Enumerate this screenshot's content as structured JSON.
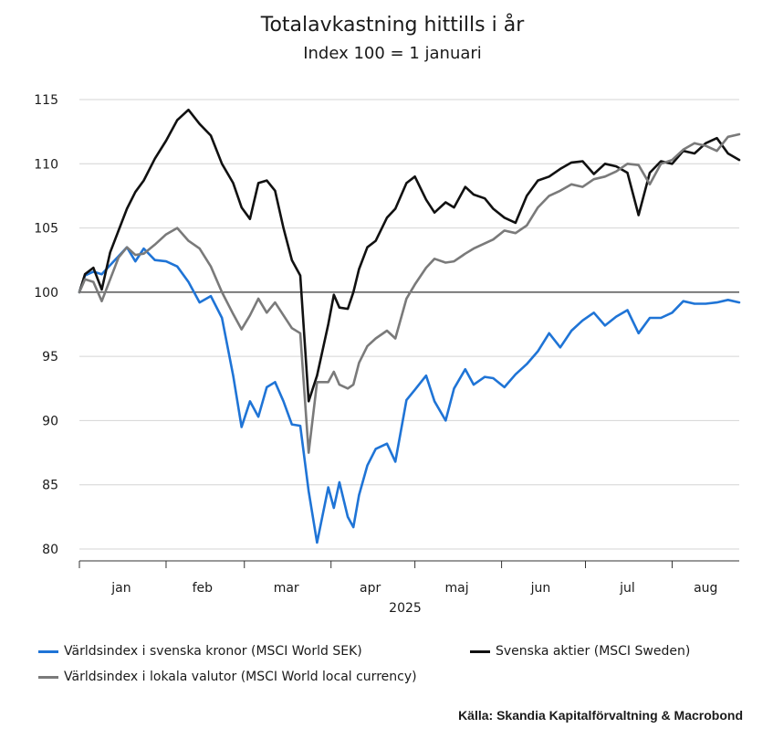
{
  "chart_data": {
    "type": "line",
    "title": "Totalavkastning hittills i år",
    "subtitle": "Index 100 = 1 januari",
    "xlabel": "2025",
    "ylabel": "",
    "ylim": [
      80,
      115
    ],
    "yticks": [
      80,
      85,
      90,
      95,
      100,
      105,
      110,
      115
    ],
    "xlim": [
      "2025-01-01",
      "2025-08-25"
    ],
    "x_tick_labels": [
      {
        "label": "jan",
        "at": "2025-01-16"
      },
      {
        "label": "feb",
        "at": "2025-02-14"
      },
      {
        "label": "mar",
        "at": "2025-03-16"
      },
      {
        "label": "apr",
        "at": "2025-04-15"
      },
      {
        "label": "maj",
        "at": "2025-05-16"
      },
      {
        "label": "jun",
        "at": "2025-06-15"
      },
      {
        "label": "jul",
        "at": "2025-07-16"
      },
      {
        "label": "aug",
        "at": "2025-08-13"
      }
    ],
    "month_boundaries": [
      "2025-01-01",
      "2025-02-01",
      "2025-03-01",
      "2025-04-01",
      "2025-05-01",
      "2025-06-01",
      "2025-07-01",
      "2025-08-01"
    ],
    "reference_line": 100,
    "grid": true,
    "legend_position": "bottom",
    "series": [
      {
        "name": "Världsindex i svenska kronor (MSCI World SEK)",
        "color": "#1f74d6",
        "x": [
          "2025-01-01",
          "2025-01-03",
          "2025-01-06",
          "2025-01-09",
          "2025-01-12",
          "2025-01-15",
          "2025-01-18",
          "2025-01-21",
          "2025-01-24",
          "2025-01-28",
          "2025-02-01",
          "2025-02-05",
          "2025-02-09",
          "2025-02-13",
          "2025-02-17",
          "2025-02-21",
          "2025-02-25",
          "2025-02-28",
          "2025-03-03",
          "2025-03-06",
          "2025-03-09",
          "2025-03-12",
          "2025-03-15",
          "2025-03-18",
          "2025-03-21",
          "2025-03-24",
          "2025-03-27",
          "2025-03-31",
          "2025-04-02",
          "2025-04-04",
          "2025-04-07",
          "2025-04-09",
          "2025-04-11",
          "2025-04-14",
          "2025-04-17",
          "2025-04-21",
          "2025-04-24",
          "2025-04-28",
          "2025-05-01",
          "2025-05-05",
          "2025-05-08",
          "2025-05-12",
          "2025-05-15",
          "2025-05-19",
          "2025-05-22",
          "2025-05-26",
          "2025-05-29",
          "2025-06-02",
          "2025-06-06",
          "2025-06-10",
          "2025-06-14",
          "2025-06-18",
          "2025-06-22",
          "2025-06-26",
          "2025-06-30",
          "2025-07-04",
          "2025-07-08",
          "2025-07-12",
          "2025-07-16",
          "2025-07-20",
          "2025-07-24",
          "2025-07-28",
          "2025-08-01",
          "2025-08-05",
          "2025-08-09",
          "2025-08-13",
          "2025-08-17",
          "2025-08-21",
          "2025-08-25"
        ],
        "y": [
          100.0,
          101.3,
          101.6,
          101.4,
          102.1,
          102.8,
          103.5,
          102.4,
          103.4,
          102.5,
          102.4,
          102.0,
          100.8,
          99.2,
          99.7,
          98.0,
          93.5,
          89.5,
          91.5,
          90.3,
          92.6,
          93.0,
          91.5,
          89.7,
          89.6,
          84.5,
          80.5,
          84.8,
          83.2,
          85.2,
          82.5,
          81.7,
          84.2,
          86.5,
          87.8,
          88.2,
          86.8,
          91.6,
          92.4,
          93.5,
          91.5,
          90.0,
          92.5,
          94.0,
          92.8,
          93.4,
          93.3,
          92.6,
          93.6,
          94.4,
          95.4,
          96.8,
          95.7,
          97.0,
          97.8,
          98.4,
          97.4,
          98.1,
          98.6,
          96.8,
          98.0,
          98.0,
          98.4,
          99.3,
          99.1,
          99.1,
          99.2,
          99.4,
          99.2
        ]
      },
      {
        "name": "Svenska aktier (MSCI Sweden)",
        "color": "#111111",
        "x": [
          "2025-01-01",
          "2025-01-03",
          "2025-01-06",
          "2025-01-09",
          "2025-01-12",
          "2025-01-15",
          "2025-01-18",
          "2025-01-21",
          "2025-01-24",
          "2025-01-28",
          "2025-02-01",
          "2025-02-05",
          "2025-02-09",
          "2025-02-13",
          "2025-02-17",
          "2025-02-21",
          "2025-02-25",
          "2025-02-28",
          "2025-03-03",
          "2025-03-06",
          "2025-03-09",
          "2025-03-12",
          "2025-03-15",
          "2025-03-18",
          "2025-03-21",
          "2025-03-24",
          "2025-03-27",
          "2025-03-31",
          "2025-04-02",
          "2025-04-04",
          "2025-04-07",
          "2025-04-09",
          "2025-04-11",
          "2025-04-14",
          "2025-04-17",
          "2025-04-21",
          "2025-04-24",
          "2025-04-28",
          "2025-05-01",
          "2025-05-05",
          "2025-05-08",
          "2025-05-12",
          "2025-05-15",
          "2025-05-19",
          "2025-05-22",
          "2025-05-26",
          "2025-05-29",
          "2025-06-02",
          "2025-06-06",
          "2025-06-10",
          "2025-06-14",
          "2025-06-18",
          "2025-06-22",
          "2025-06-26",
          "2025-06-30",
          "2025-07-04",
          "2025-07-08",
          "2025-07-12",
          "2025-07-16",
          "2025-07-20",
          "2025-07-24",
          "2025-07-28",
          "2025-08-01",
          "2025-08-05",
          "2025-08-09",
          "2025-08-13",
          "2025-08-17",
          "2025-08-21",
          "2025-08-25"
        ],
        "y": [
          100.0,
          101.4,
          101.9,
          100.2,
          103.1,
          104.8,
          106.5,
          107.8,
          108.7,
          110.4,
          111.8,
          113.4,
          114.2,
          113.1,
          112.2,
          110.0,
          108.5,
          106.6,
          105.7,
          108.5,
          108.7,
          107.9,
          105.0,
          102.5,
          101.3,
          91.5,
          93.5,
          97.5,
          99.8,
          98.8,
          98.7,
          100.0,
          101.8,
          103.5,
          104.0,
          105.8,
          106.5,
          108.5,
          109.0,
          107.2,
          106.2,
          107.0,
          106.6,
          108.2,
          107.6,
          107.3,
          106.5,
          105.8,
          105.4,
          107.5,
          108.7,
          109.0,
          109.6,
          110.1,
          110.2,
          109.2,
          110.0,
          109.8,
          109.3,
          106.0,
          109.3,
          110.2,
          110.0,
          111.0,
          110.8,
          111.6,
          112.0,
          110.8,
          110.3
        ]
      },
      {
        "name": "Världsindex i lokala valutor (MSCI World local currency)",
        "color": "#7a7a7a",
        "x": [
          "2025-01-01",
          "2025-01-03",
          "2025-01-06",
          "2025-01-09",
          "2025-01-12",
          "2025-01-15",
          "2025-01-18",
          "2025-01-21",
          "2025-01-24",
          "2025-01-28",
          "2025-02-01",
          "2025-02-05",
          "2025-02-09",
          "2025-02-13",
          "2025-02-17",
          "2025-02-21",
          "2025-02-25",
          "2025-02-28",
          "2025-03-03",
          "2025-03-06",
          "2025-03-09",
          "2025-03-12",
          "2025-03-15",
          "2025-03-18",
          "2025-03-21",
          "2025-03-24",
          "2025-03-27",
          "2025-03-31",
          "2025-04-02",
          "2025-04-04",
          "2025-04-07",
          "2025-04-09",
          "2025-04-11",
          "2025-04-14",
          "2025-04-17",
          "2025-04-21",
          "2025-04-24",
          "2025-04-28",
          "2025-05-01",
          "2025-05-05",
          "2025-05-08",
          "2025-05-12",
          "2025-05-15",
          "2025-05-19",
          "2025-05-22",
          "2025-05-26",
          "2025-05-29",
          "2025-06-02",
          "2025-06-06",
          "2025-06-10",
          "2025-06-14",
          "2025-06-18",
          "2025-06-22",
          "2025-06-26",
          "2025-06-30",
          "2025-07-04",
          "2025-07-08",
          "2025-07-12",
          "2025-07-16",
          "2025-07-20",
          "2025-07-24",
          "2025-07-28",
          "2025-08-01",
          "2025-08-05",
          "2025-08-09",
          "2025-08-13",
          "2025-08-17",
          "2025-08-21",
          "2025-08-25"
        ],
        "y": [
          100.0,
          101.0,
          100.8,
          99.3,
          101.0,
          102.7,
          103.5,
          102.9,
          103.0,
          103.7,
          104.5,
          105.0,
          104.0,
          103.4,
          102.0,
          100.0,
          98.3,
          97.1,
          98.2,
          99.5,
          98.4,
          99.2,
          98.2,
          97.2,
          96.8,
          87.5,
          93.0,
          93.0,
          93.8,
          92.8,
          92.5,
          92.8,
          94.5,
          95.8,
          96.4,
          97.0,
          96.4,
          99.5,
          100.6,
          101.9,
          102.6,
          102.3,
          102.4,
          103.0,
          103.4,
          103.8,
          104.1,
          104.8,
          104.6,
          105.2,
          106.6,
          107.5,
          107.9,
          108.4,
          108.2,
          108.8,
          109.0,
          109.4,
          110.0,
          109.9,
          108.4,
          110.0,
          110.3,
          111.1,
          111.6,
          111.4,
          111.0,
          112.1,
          112.3
        ]
      }
    ],
    "source": "Källa: Skandia Kapitalförvaltning & Macrobond"
  }
}
